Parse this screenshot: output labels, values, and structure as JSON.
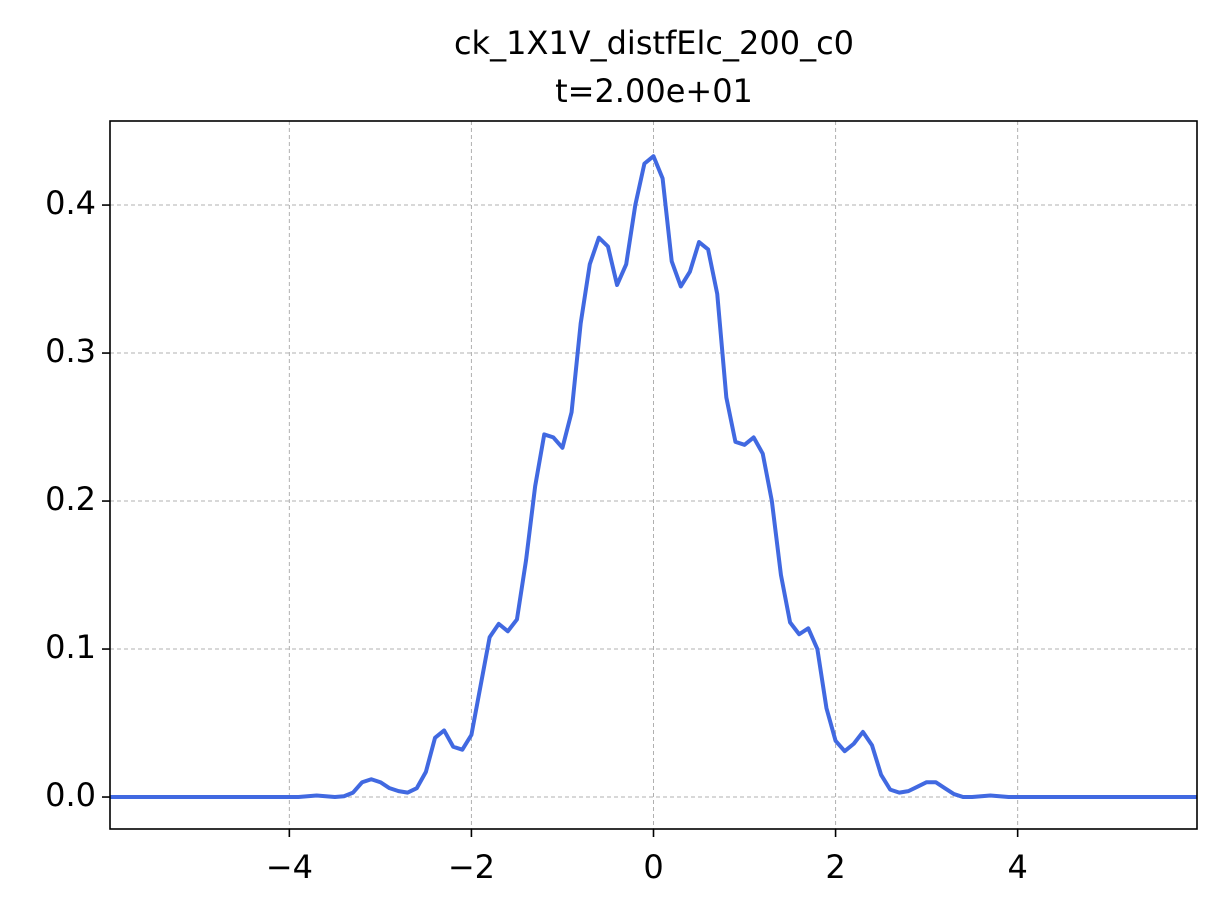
{
  "chart_data": {
    "type": "line",
    "title": "ck_1X1V_distfElc_200_c0",
    "subtitle": "t=2.00e+01",
    "x": [
      -6.0,
      -5.9,
      -5.8,
      -5.7,
      -5.6,
      -5.5,
      -5.4,
      -5.3,
      -5.2,
      -5.1,
      -5.0,
      -4.9,
      -4.8,
      -4.7,
      -4.6,
      -4.5,
      -4.4,
      -4.3,
      -4.2,
      -4.1,
      -4.0,
      -3.9,
      -3.8,
      -3.7,
      -3.6,
      -3.5,
      -3.4,
      -3.3,
      -3.2,
      -3.1,
      -3.0,
      -2.9,
      -2.8,
      -2.7,
      -2.6,
      -2.5,
      -2.4,
      -2.3,
      -2.2,
      -2.1,
      -2.0,
      -1.9,
      -1.8,
      -1.7,
      -1.6,
      -1.5,
      -1.4,
      -1.3,
      -1.2,
      -1.1,
      -1.0,
      -0.9,
      -0.8,
      -0.7,
      -0.6,
      -0.5,
      -0.4,
      -0.3,
      -0.2,
      -0.1,
      0.0,
      0.1,
      0.2,
      0.3,
      0.4,
      0.5,
      0.6,
      0.7,
      0.8,
      0.9,
      1.0,
      1.1,
      1.2,
      1.3,
      1.4,
      1.5,
      1.6,
      1.7,
      1.8,
      1.9,
      2.0,
      2.1,
      2.2,
      2.3,
      2.4,
      2.5,
      2.6,
      2.7,
      2.8,
      2.9,
      3.0,
      3.1,
      3.2,
      3.3,
      3.4,
      3.5,
      3.6,
      3.7,
      3.8,
      3.9,
      4.0,
      4.1,
      4.2,
      4.3,
      4.4,
      4.5,
      4.6,
      4.7,
      4.8,
      4.9,
      5.0,
      5.1,
      5.2,
      5.3,
      5.4,
      5.5,
      5.6,
      5.7,
      5.8,
      5.9,
      6.0
    ],
    "series": [
      {
        "color": "#4169e1",
        "values": [
          0,
          0,
          0,
          0,
          0,
          0,
          0,
          0,
          0,
          0,
          0,
          0,
          0,
          0,
          0,
          0,
          0,
          0,
          0,
          0,
          0,
          0,
          0.0005,
          0.001,
          0.0005,
          0,
          0.0005,
          0.003,
          0.01,
          0.012,
          0.01,
          0.006,
          0.004,
          0.003,
          0.006,
          0.017,
          0.04,
          0.045,
          0.034,
          0.032,
          0.042,
          0.075,
          0.108,
          0.117,
          0.112,
          0.12,
          0.16,
          0.21,
          0.245,
          0.243,
          0.236,
          0.26,
          0.32,
          0.36,
          0.378,
          0.372,
          0.346,
          0.36,
          0.4,
          0.428,
          0.433,
          0.418,
          0.362,
          0.345,
          0.355,
          0.375,
          0.37,
          0.34,
          0.27,
          0.24,
          0.238,
          0.243,
          0.232,
          0.2,
          0.15,
          0.118,
          0.11,
          0.114,
          0.1,
          0.06,
          0.038,
          0.031,
          0.036,
          0.044,
          0.035,
          0.015,
          0.005,
          0.003,
          0.004,
          0.007,
          0.01,
          0.01,
          0.006,
          0.002,
          0,
          0,
          0.0005,
          0.001,
          0.0005,
          0,
          0,
          0,
          0,
          0,
          0,
          0,
          0,
          0,
          0,
          0,
          0,
          0,
          0,
          0,
          0,
          0,
          0,
          0,
          0,
          0,
          0
        ]
      }
    ],
    "xlim": [
      -5.97,
      5.97
    ],
    "ylim": [
      -0.0216,
      0.4568
    ],
    "xticks": [
      {
        "value": -4,
        "label": "−4"
      },
      {
        "value": -2,
        "label": "−2"
      },
      0,
      2,
      4
    ],
    "yticks": [
      {
        "value": 0,
        "label": "0.0"
      },
      0.1,
      0.2,
      0.3,
      0.4
    ],
    "grid": true
  }
}
